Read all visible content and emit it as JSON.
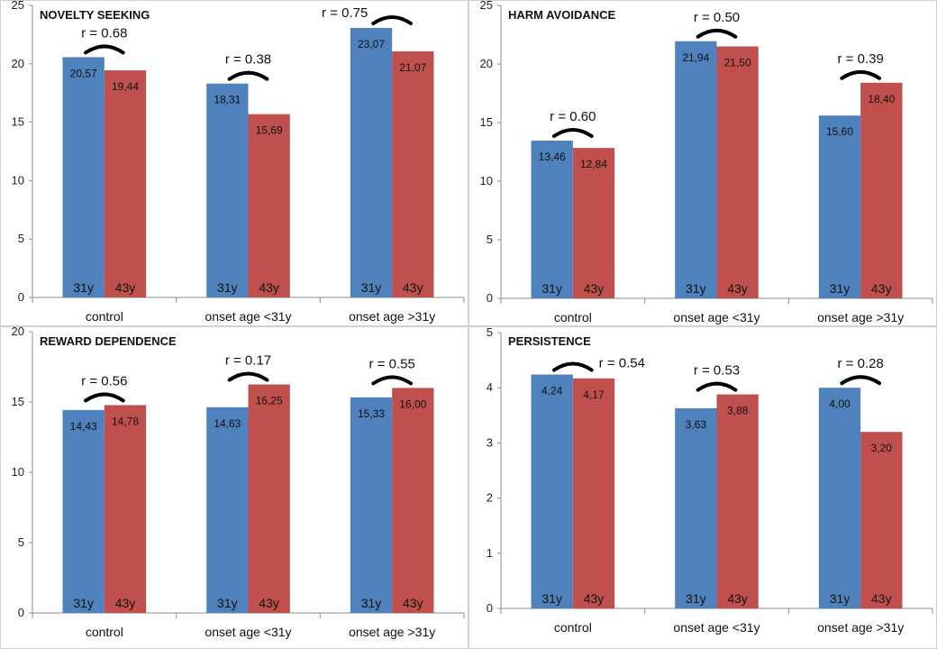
{
  "colors": {
    "series1": "#4f81bd",
    "series2": "#c0504d"
  },
  "chart_data": [
    {
      "type": "bar",
      "title": "NOVELTY SEEKING",
      "categories": [
        "control",
        "onset age <31y",
        "onset age >31y"
      ],
      "series": [
        {
          "name": "31y",
          "values": [
            20.57,
            18.31,
            23.07
          ],
          "labels": [
            "20,57",
            "18,31",
            "23,07"
          ]
        },
        {
          "name": "43y",
          "values": [
            19.44,
            15.69,
            21.07
          ],
          "labels": [
            "19,44",
            "15,69",
            "21,07"
          ]
        }
      ],
      "annotations": [
        "r = 0.68",
        "r = 0.38",
        "r = 0.75"
      ],
      "ylim": [
        0,
        25
      ],
      "yticks": [
        0,
        5,
        10,
        15,
        20,
        25
      ]
    },
    {
      "type": "bar",
      "title": "HARM AVOIDANCE",
      "categories": [
        "control",
        "onset age <31y",
        "onset age >31y"
      ],
      "series": [
        {
          "name": "31y",
          "values": [
            13.46,
            21.94,
            15.6
          ],
          "labels": [
            "13,46",
            "21,94",
            "15,60"
          ]
        },
        {
          "name": "43y",
          "values": [
            12.84,
            21.5,
            18.4
          ],
          "labels": [
            "12,84",
            "21,50",
            "18,40"
          ]
        }
      ],
      "annotations": [
        "r = 0.60",
        "r = 0.50",
        "r = 0.39"
      ],
      "ylim": [
        0,
        25
      ],
      "yticks": [
        0,
        5,
        10,
        15,
        20,
        25
      ]
    },
    {
      "type": "bar",
      "title": "REWARD DEPENDENCE",
      "categories": [
        "control",
        "onset age <31y",
        "onset age >31y"
      ],
      "series": [
        {
          "name": "31y",
          "values": [
            14.43,
            14.63,
            15.33
          ],
          "labels": [
            "14,43",
            "14,63",
            "15,33"
          ]
        },
        {
          "name": "43y",
          "values": [
            14.78,
            16.25,
            16.0
          ],
          "labels": [
            "14,78",
            "16,25",
            "16,00"
          ]
        }
      ],
      "annotations": [
        "r = 0.56",
        "r = 0.17",
        "r = 0.55"
      ],
      "ylim": [
        0,
        20
      ],
      "yticks": [
        0,
        5,
        10,
        15,
        20
      ]
    },
    {
      "type": "bar",
      "title": "PERSISTENCE",
      "categories": [
        "control",
        "onset age <31y",
        "onset age >31y"
      ],
      "series": [
        {
          "name": "31y",
          "values": [
            4.24,
            3.63,
            4.0
          ],
          "labels": [
            "4,24",
            "3,63",
            "4,00"
          ]
        },
        {
          "name": "43y",
          "values": [
            4.17,
            3.88,
            3.2
          ],
          "labels": [
            "4,17",
            "3,88",
            "3,20"
          ]
        }
      ],
      "annotations": [
        "r = 0.54",
        "r = 0.53",
        "r = 0.28"
      ],
      "ylim": [
        0,
        5
      ],
      "yticks": [
        0,
        1,
        2,
        3,
        4,
        5
      ]
    }
  ]
}
